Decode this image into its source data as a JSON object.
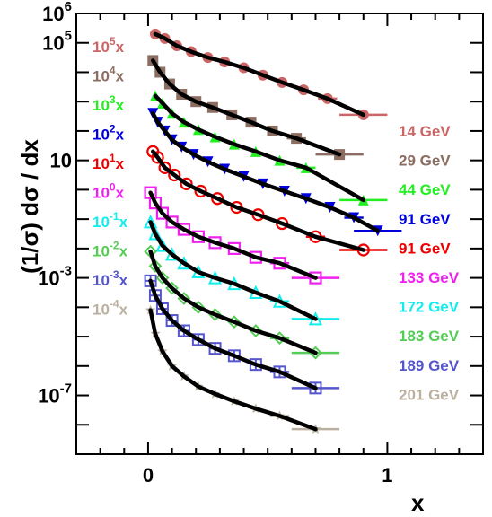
{
  "chart_data": {
    "type": "scatter",
    "xlabel": "x",
    "ylabel": "(1/σ) dσ / dx",
    "xlim": [
      -0.3,
      1.4
    ],
    "ylim_log10": [
      -9,
      6
    ],
    "y_scale": "log",
    "x_ticks": [
      0,
      1
    ],
    "x_tick_labels": [
      "0",
      "1"
    ],
    "y_ticks_log10": [
      -7,
      -3,
      1,
      5,
      6
    ],
    "y_tick_labels": [
      {
        "base": "10",
        "exp": "-7"
      },
      {
        "base": "10",
        "exp": "-3"
      },
      {
        "base": "10",
        "exp": ""
      },
      {
        "base": "10",
        "exp": "5"
      },
      {
        "base": "10",
        "exp": "6"
      }
    ],
    "grid": false,
    "series": [
      {
        "name": "14 GeV",
        "scale_label": {
          "base": "10",
          "exp": "5",
          "suffix": "x"
        },
        "color": "#cc6666",
        "marker": "circle-filled",
        "x": [
          0.03,
          0.07,
          0.12,
          0.18,
          0.25,
          0.32,
          0.4,
          0.48,
          0.56,
          0.65,
          0.75,
          0.9
        ],
        "log10y": [
          5.3,
          5.15,
          4.9,
          4.7,
          4.5,
          4.35,
          4.15,
          3.9,
          3.65,
          3.4,
          3.1,
          2.55
        ]
      },
      {
        "name": "29 GeV",
        "scale_label": {
          "base": "10",
          "exp": "4",
          "suffix": "x"
        },
        "color": "#8c6d62",
        "marker": "square-filled",
        "x": [
          0.02,
          0.05,
          0.09,
          0.14,
          0.2,
          0.27,
          0.35,
          0.43,
          0.52,
          0.62,
          0.8
        ],
        "log10y": [
          4.4,
          4.0,
          3.6,
          3.25,
          3.0,
          2.8,
          2.55,
          2.3,
          2.0,
          1.75,
          1.2
        ]
      },
      {
        "name": "44 GeV",
        "scale_label": {
          "base": "10",
          "exp": "3",
          "suffix": "x"
        },
        "color": "#22ee22",
        "marker": "triangle-up-filled",
        "x": [
          0.03,
          0.06,
          0.1,
          0.15,
          0.21,
          0.28,
          0.36,
          0.45,
          0.55,
          0.66,
          0.9
        ],
        "log10y": [
          3.2,
          2.95,
          2.6,
          2.3,
          2.05,
          1.8,
          1.55,
          1.3,
          1.0,
          0.75,
          -0.35
        ]
      },
      {
        "name": "91 GeV",
        "scale_label": {
          "base": "10",
          "exp": "2",
          "suffix": "x"
        },
        "color": "#0000dd",
        "marker": "triangle-down-filled",
        "x": [
          0.02,
          0.04,
          0.07,
          0.1,
          0.14,
          0.19,
          0.25,
          0.32,
          0.4,
          0.48,
          0.57,
          0.66,
          0.76,
          0.86,
          0.96
        ],
        "log10y": [
          2.6,
          2.3,
          2.0,
          1.7,
          1.45,
          1.2,
          0.95,
          0.7,
          0.45,
          0.2,
          -0.05,
          -0.3,
          -0.6,
          -0.95,
          -1.4
        ]
      },
      {
        "name": "91 GeV",
        "scale_label": {
          "base": "10",
          "exp": "1",
          "suffix": "x"
        },
        "color": "#ee0000",
        "marker": "circle-open",
        "x": [
          0.02,
          0.04,
          0.07,
          0.11,
          0.16,
          0.22,
          0.29,
          0.37,
          0.46,
          0.56,
          0.7,
          0.9
        ],
        "log10y": [
          1.3,
          1.1,
          0.75,
          0.5,
          0.2,
          -0.05,
          -0.3,
          -0.6,
          -0.85,
          -1.15,
          -1.6,
          -2.05
        ]
      },
      {
        "name": "133 GeV",
        "scale_label": {
          "base": "10",
          "exp": "0",
          "suffix": "x"
        },
        "color": "#ee22ee",
        "marker": "square-open",
        "x": [
          0.01,
          0.03,
          0.06,
          0.1,
          0.15,
          0.21,
          0.28,
          0.36,
          0.45,
          0.55,
          0.7
        ],
        "log10y": [
          -0.1,
          -0.45,
          -0.8,
          -1.1,
          -1.35,
          -1.6,
          -1.8,
          -2.0,
          -2.3,
          -2.5,
          -3.0
        ]
      },
      {
        "name": "172 GeV",
        "scale_label": {
          "base": "10",
          "exp": "-1",
          "suffix": "x"
        },
        "color": "#11eeee",
        "marker": "triangle-up-open",
        "x": [
          0.01,
          0.03,
          0.06,
          0.1,
          0.15,
          0.21,
          0.28,
          0.36,
          0.45,
          0.55,
          0.7
        ],
        "log10y": [
          -1.1,
          -1.5,
          -1.9,
          -2.2,
          -2.5,
          -2.8,
          -3.0,
          -3.2,
          -3.5,
          -3.8,
          -4.4
        ]
      },
      {
        "name": "183 GeV",
        "scale_label": {
          "base": "10",
          "exp": "-2",
          "suffix": "x"
        },
        "color": "#55cc55",
        "marker": "diamond-open",
        "x": [
          0.01,
          0.03,
          0.06,
          0.1,
          0.15,
          0.21,
          0.28,
          0.36,
          0.45,
          0.55,
          0.7
        ],
        "log10y": [
          -2.1,
          -2.6,
          -3.0,
          -3.35,
          -3.7,
          -4.0,
          -4.25,
          -4.5,
          -4.8,
          -5.05,
          -5.55
        ]
      },
      {
        "name": "189 GeV",
        "scale_label": {
          "base": "10",
          "exp": "-3",
          "suffix": "x"
        },
        "color": "#5555cc",
        "marker": "cross-square",
        "x": [
          0.01,
          0.03,
          0.06,
          0.1,
          0.15,
          0.21,
          0.28,
          0.36,
          0.45,
          0.55,
          0.7
        ],
        "log10y": [
          -3.1,
          -3.6,
          -4.05,
          -4.45,
          -4.8,
          -5.1,
          -5.4,
          -5.65,
          -5.95,
          -6.2,
          -6.75
        ]
      },
      {
        "name": "201 GeV",
        "scale_label": {
          "base": "10",
          "exp": "-4",
          "suffix": "x"
        },
        "color": "#bbb0a0",
        "marker": "star",
        "x": [
          0.01,
          0.03,
          0.06,
          0.1,
          0.15,
          0.21,
          0.28,
          0.36,
          0.45,
          0.55,
          0.7
        ],
        "log10y": [
          -4.1,
          -4.9,
          -5.5,
          -6.0,
          -6.35,
          -6.7,
          -6.95,
          -7.2,
          -7.45,
          -7.7,
          -8.15
        ]
      }
    ]
  }
}
